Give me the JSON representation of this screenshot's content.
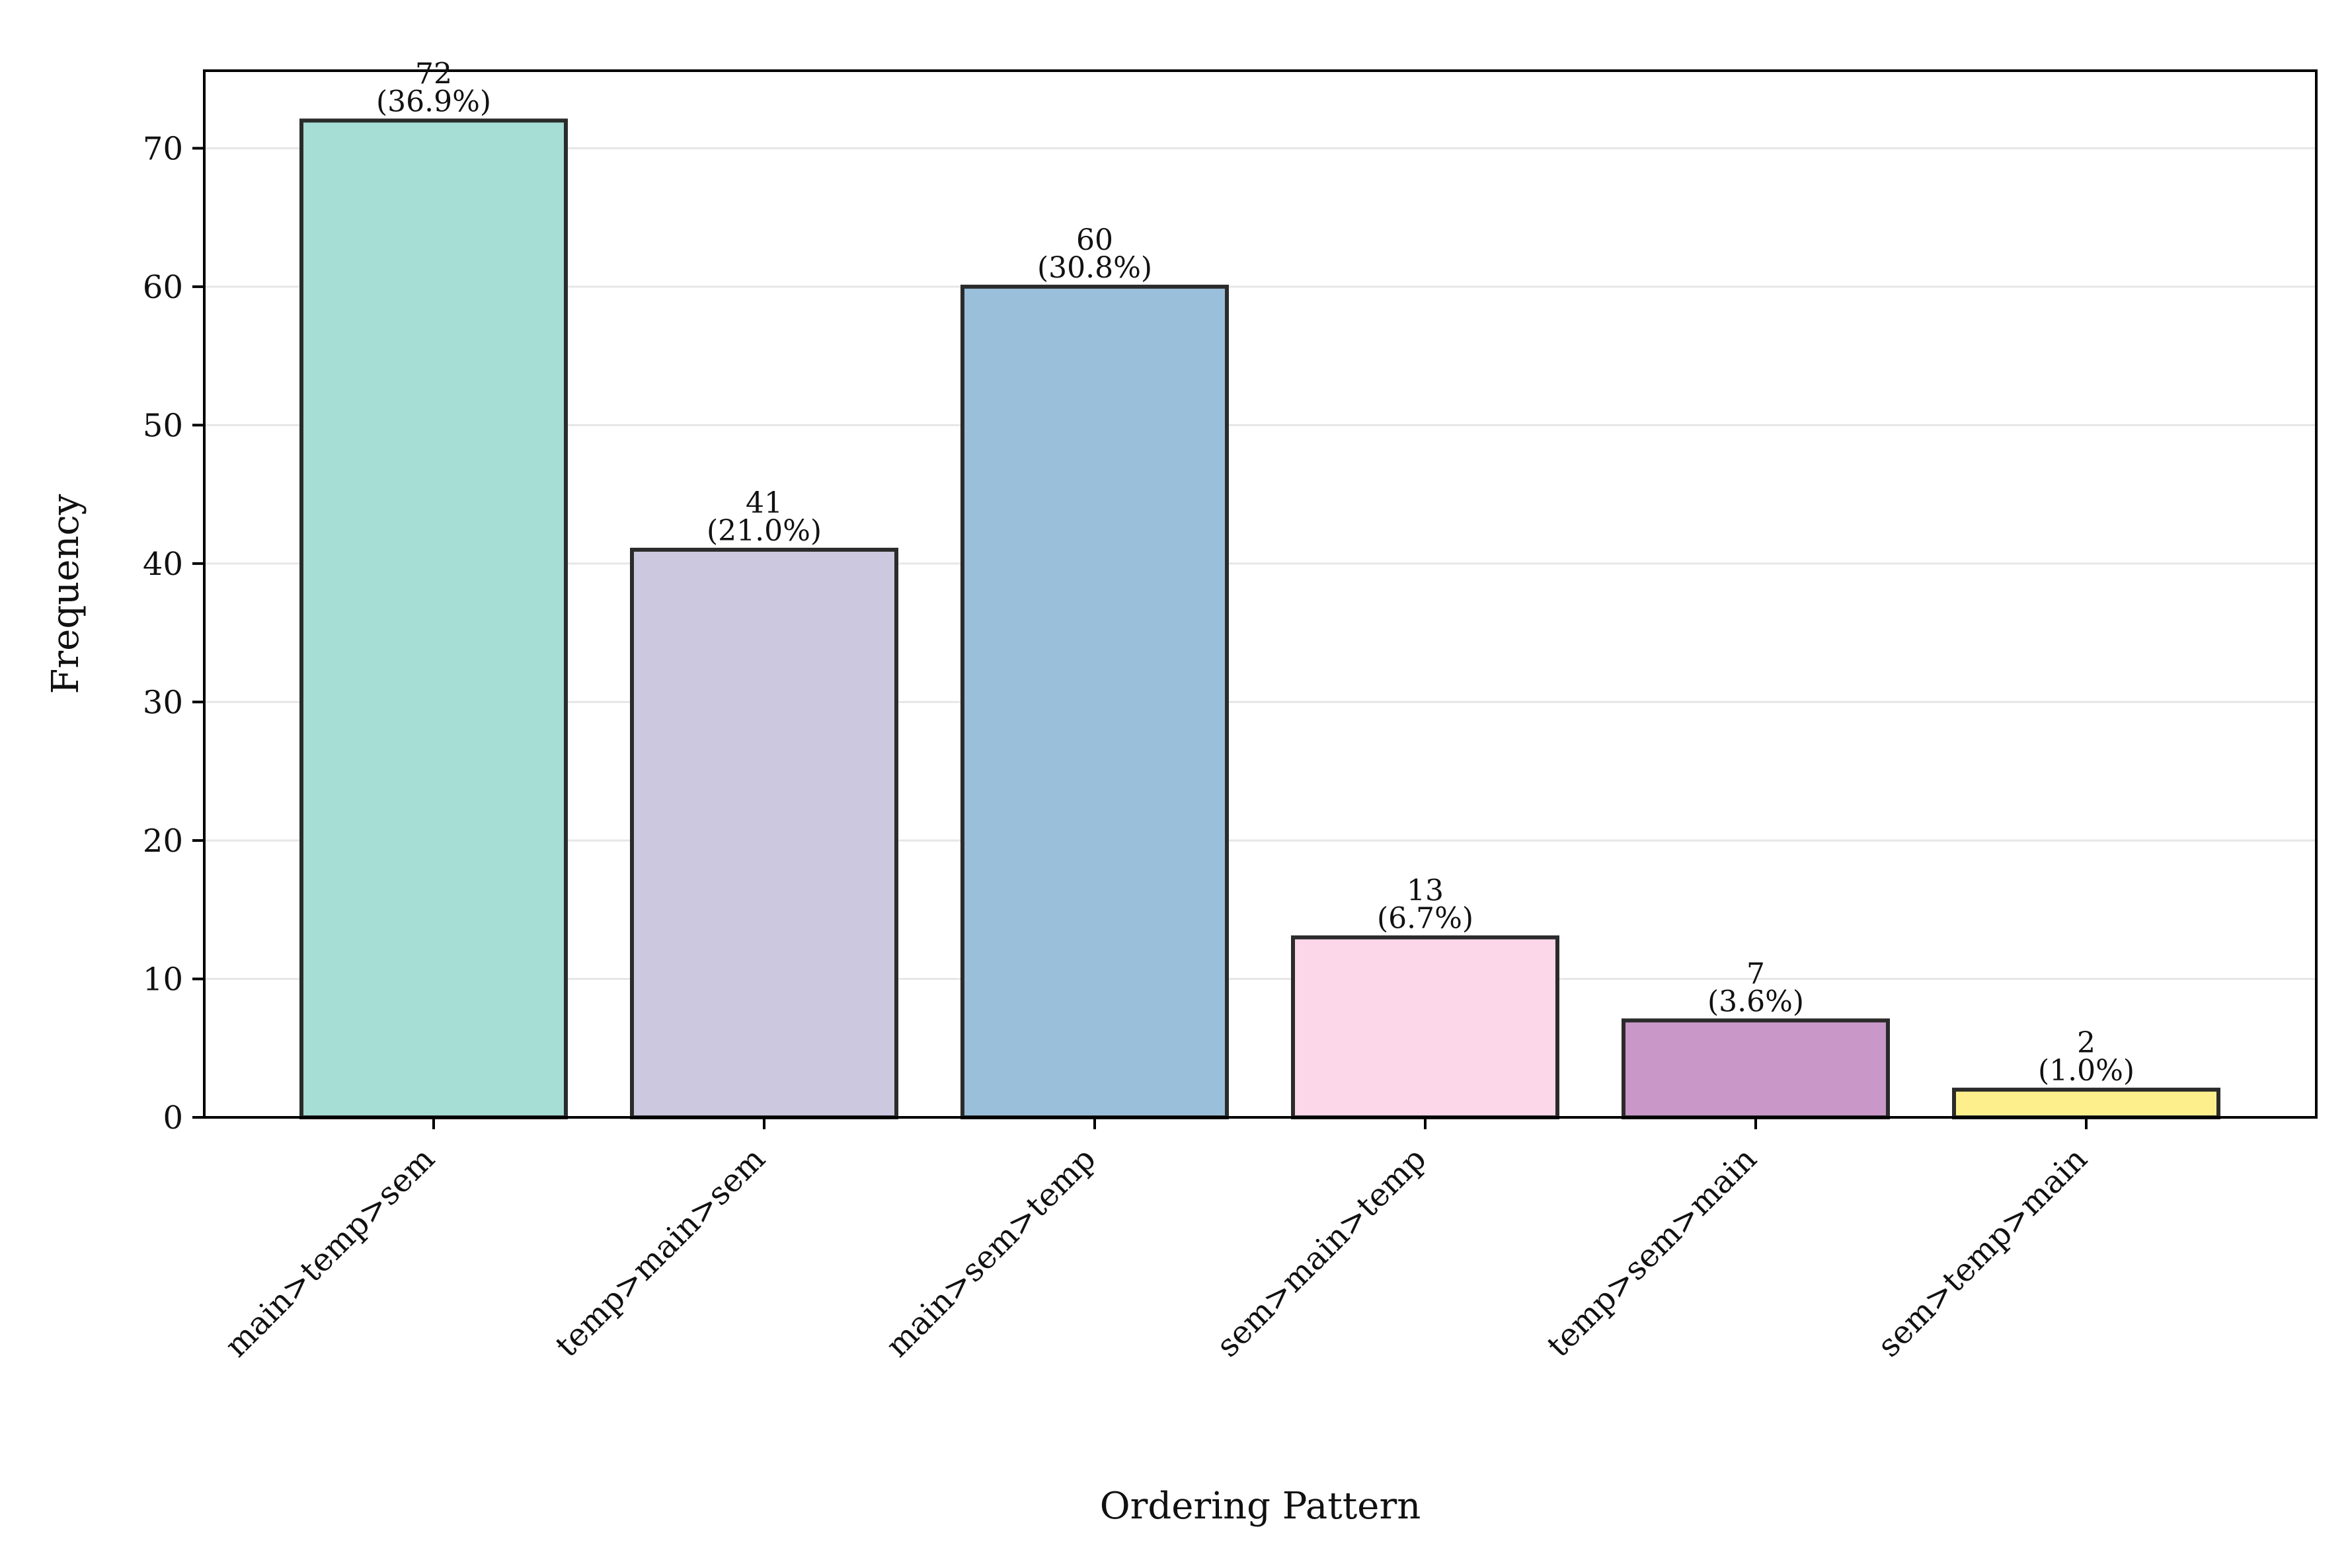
{
  "chart_data": {
    "type": "bar",
    "title": "",
    "xlabel": "Ordering Pattern",
    "ylabel": "Frequency",
    "categories": [
      "main>temp>sem",
      "temp>main>sem",
      "main>sem>temp",
      "sem>main>temp",
      "temp>sem>main",
      "sem>temp>main"
    ],
    "values": [
      72,
      41,
      60,
      13,
      7,
      2
    ],
    "percent_labels": [
      "(36.9%)",
      "(21.0%)",
      "(30.8%)",
      "(6.7%)",
      "(3.6%)",
      "(1.0%)"
    ],
    "colors": [
      "#a6ddd4",
      "#cbc8e0",
      "#9abfdb",
      "#fbd7e9",
      "#c998c8",
      "#fdf08c"
    ],
    "ylim": [
      0,
      75.6
    ],
    "yticks": [
      0,
      10,
      20,
      30,
      40,
      50,
      60,
      70
    ],
    "grid": "y",
    "legend": "none"
  }
}
